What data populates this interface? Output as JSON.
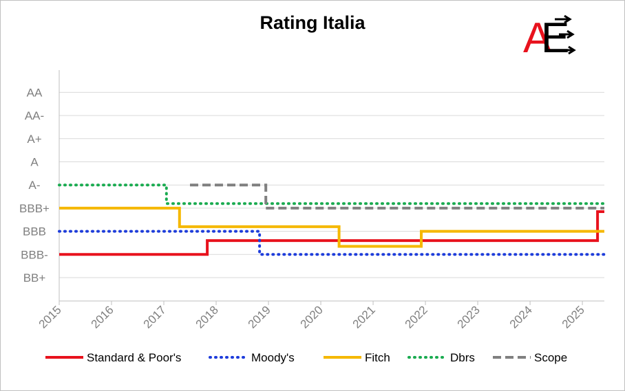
{
  "chart_data": {
    "type": "line",
    "title": "Rating Italia",
    "xlabel": "",
    "ylabel": "",
    "x_ticks": [
      "2015",
      "2016",
      "2017",
      "2018",
      "2019",
      "2020",
      "2021",
      "2022",
      "2023",
      "2024",
      "2025"
    ],
    "xlim": [
      2015.0,
      2025.42
    ],
    "y_ticks": [
      "BB+",
      "BBB-",
      "BBB",
      "BBB+",
      "A-",
      "A",
      "A+",
      "AA-",
      "AA"
    ],
    "y_tick_values": [
      0,
      1,
      2,
      3,
      4,
      5,
      6,
      7,
      8
    ],
    "ylim": [
      -1,
      9
    ],
    "grid": true,
    "legend_position": "bottom",
    "series": [
      {
        "name": "Standard & Poor's",
        "color": "#e8121d",
        "style": "solid",
        "x": [
          2015.0,
          2017.83,
          2017.83,
          2025.29,
          2025.29,
          2025.42
        ],
        "y": [
          1,
          1,
          1.6,
          1.6,
          2.85,
          2.85
        ]
      },
      {
        "name": "Moody's",
        "color": "#1e3ddb",
        "style": "dotted",
        "x": [
          2015.0,
          2018.83,
          2018.83,
          2025.42
        ],
        "y": [
          2,
          2,
          1,
          1
        ]
      },
      {
        "name": "Fitch",
        "color": "#f5b800",
        "style": "solid",
        "x": [
          2015.0,
          2017.3,
          2017.3,
          2020.35,
          2020.35,
          2021.92,
          2021.92,
          2025.42
        ],
        "y": [
          3,
          3,
          2.2,
          2.2,
          1.35,
          1.35,
          2,
          2
        ]
      },
      {
        "name": "Dbrs",
        "color": "#1aab50",
        "style": "dotted",
        "x": [
          2015.0,
          2017.05,
          2017.05,
          2025.42
        ],
        "y": [
          4,
          4,
          3.2,
          3.2
        ]
      },
      {
        "name": "Scope",
        "color": "#808080",
        "style": "dashed",
        "x": [
          2017.5,
          2018.95,
          2018.95,
          2025.42
        ],
        "y": [
          4,
          4,
          3,
          3
        ]
      }
    ]
  },
  "logo": {
    "text": "AE",
    "colors": [
      "#e8121d",
      "#000000"
    ]
  }
}
